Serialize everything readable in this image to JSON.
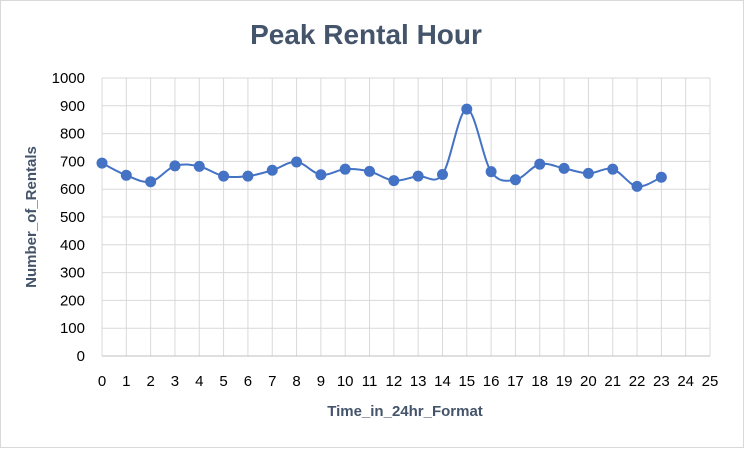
{
  "chart_data": {
    "type": "line",
    "title": "Peak Rental Hour",
    "xlabel": "Time_in_24hr_Format",
    "ylabel": "Number_of_Rentals",
    "xlim": [
      0,
      25
    ],
    "ylim": [
      0,
      1000
    ],
    "x_ticks": [
      "0",
      "1",
      "2",
      "3",
      "4",
      "5",
      "6",
      "7",
      "8",
      "9",
      "10",
      "11",
      "12",
      "13",
      "14",
      "15",
      "16",
      "17",
      "18",
      "19",
      "20",
      "21",
      "22",
      "23",
      "24",
      "25"
    ],
    "y_ticks": [
      "0",
      "100",
      "200",
      "300",
      "400",
      "500",
      "600",
      "700",
      "800",
      "900",
      "1000"
    ],
    "grid": true,
    "legend": "none",
    "smooth": true,
    "series": [
      {
        "color": "#4472c4",
        "x": [
          0,
          1,
          2,
          3,
          4,
          5,
          6,
          7,
          8,
          9,
          10,
          11,
          12,
          13,
          14,
          15,
          16,
          17,
          18,
          19,
          20,
          21,
          22,
          23
        ],
        "y": [
          694,
          650,
          627,
          684,
          682,
          647,
          647,
          668,
          698,
          652,
          672,
          664,
          631,
          647,
          653,
          888,
          663,
          634,
          690,
          675,
          657,
          672,
          610,
          643
        ]
      }
    ]
  }
}
